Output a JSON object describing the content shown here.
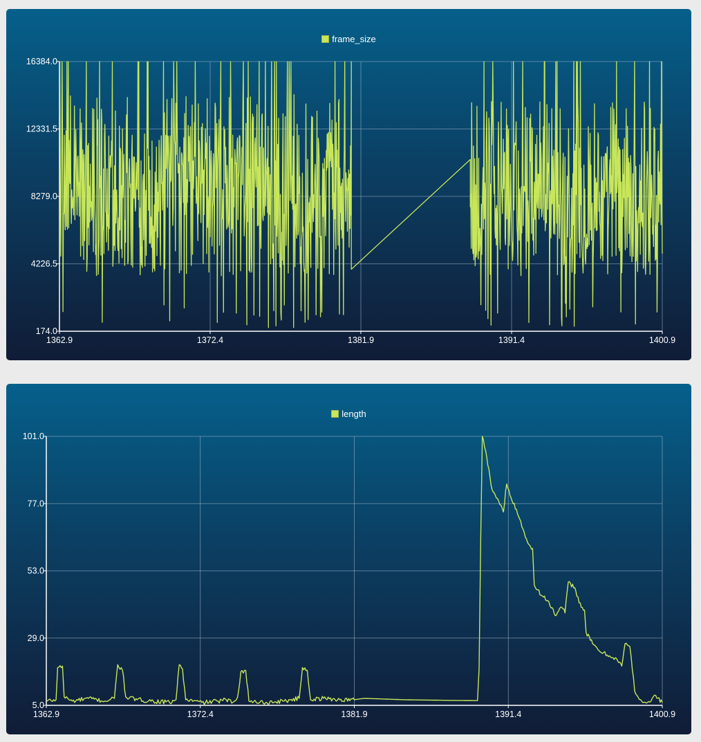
{
  "colors": {
    "series": "#c8e65a",
    "grid": "#9fb4c8",
    "axis": "#ffffff"
  },
  "chart_data": [
    {
      "type": "line",
      "title": "",
      "xlabel": "",
      "ylabel": "",
      "legend_position": "top-center",
      "grid": true,
      "xlim": [
        1362.9,
        1400.9
      ],
      "ylim": [
        174.0,
        16384.0
      ],
      "x_ticks": [
        "1362.9",
        "1372.4",
        "1381.9",
        "1391.4",
        "1400.9"
      ],
      "y_ticks": [
        "16384.0",
        "12331.5",
        "8279.0",
        "4226.5",
        "174.0"
      ],
      "series": [
        {
          "name": "frame_size",
          "noisy_segments": [
            {
              "x_start": 1362.9,
              "x_end": 1381.3,
              "typical_min": 3500,
              "typical_max": 12000,
              "peak": 16384,
              "floor": 300
            },
            {
              "x_start": 1388.8,
              "x_end": 1400.9,
              "typical_min": 3500,
              "typical_max": 11500,
              "peak": 16384,
              "floor": 400
            }
          ],
          "bridge": [
            [
              1381.3,
              3900
            ],
            [
              1388.8,
              10500
            ]
          ]
        }
      ]
    },
    {
      "type": "line",
      "title": "",
      "xlabel": "",
      "ylabel": "",
      "legend_position": "top-center",
      "grid": true,
      "xlim": [
        1362.9,
        1400.9
      ],
      "ylim": [
        5.0,
        101.0
      ],
      "x_ticks": [
        "1362.9",
        "1372.4",
        "1381.9",
        "1391.4",
        "1400.9"
      ],
      "y_ticks": [
        "101.0",
        "77.0",
        "53.0",
        "29.0",
        "5.0"
      ],
      "series": [
        {
          "name": "length",
          "points": [
            [
              1362.9,
              6.5
            ],
            [
              1363.5,
              7.0
            ],
            [
              1363.6,
              18.5
            ],
            [
              1363.9,
              19.0
            ],
            [
              1364.0,
              8.0
            ],
            [
              1364.5,
              6.5
            ],
            [
              1365.5,
              7.5
            ],
            [
              1366.5,
              6.5
            ],
            [
              1367.1,
              7.5
            ],
            [
              1367.3,
              19.5
            ],
            [
              1367.6,
              17.5
            ],
            [
              1367.8,
              8.0
            ],
            [
              1368.5,
              7.0
            ],
            [
              1369.5,
              6.5
            ],
            [
              1370.5,
              6.0
            ],
            [
              1370.9,
              7.0
            ],
            [
              1371.1,
              19.5
            ],
            [
              1371.3,
              18.0
            ],
            [
              1371.5,
              7.0
            ],
            [
              1372.5,
              6.0
            ],
            [
              1373.5,
              6.5
            ],
            [
              1374.0,
              7.0
            ],
            [
              1374.4,
              6.0
            ],
            [
              1374.7,
              8.0
            ],
            [
              1374.9,
              17.0
            ],
            [
              1375.2,
              17.5
            ],
            [
              1375.4,
              6.5
            ],
            [
              1376.5,
              6.0
            ],
            [
              1377.5,
              6.5
            ],
            [
              1378.5,
              7.5
            ],
            [
              1378.7,
              18.5
            ],
            [
              1379.0,
              17.5
            ],
            [
              1379.2,
              7.0
            ],
            [
              1380.0,
              7.5
            ],
            [
              1381.0,
              7.0
            ],
            [
              1381.9,
              7.0
            ],
            [
              1382.5,
              7.5
            ],
            [
              1385.0,
              7.0
            ],
            [
              1387.5,
              6.8
            ],
            [
              1389.5,
              6.7
            ],
            [
              1389.6,
              18.0
            ],
            [
              1389.7,
              65.0
            ],
            [
              1389.8,
              101.0
            ],
            [
              1390.0,
              96.0
            ],
            [
              1390.4,
              82.0
            ],
            [
              1390.8,
              78.0
            ],
            [
              1391.1,
              74.0
            ],
            [
              1391.3,
              84.0
            ],
            [
              1391.5,
              80.0
            ],
            [
              1391.9,
              75.0
            ],
            [
              1392.3,
              68.0
            ],
            [
              1392.6,
              63.0
            ],
            [
              1392.9,
              61.0
            ],
            [
              1393.0,
              48.0
            ],
            [
              1393.5,
              44.0
            ],
            [
              1393.9,
              42.0
            ],
            [
              1394.3,
              37.0
            ],
            [
              1394.7,
              40.0
            ],
            [
              1394.9,
              38.0
            ],
            [
              1395.1,
              49.0
            ],
            [
              1395.5,
              47.0
            ],
            [
              1395.9,
              40.0
            ],
            [
              1396.1,
              39.0
            ],
            [
              1396.2,
              31.0
            ],
            [
              1396.6,
              27.0
            ],
            [
              1397.0,
              24.5
            ],
            [
              1397.5,
              23.0
            ],
            [
              1398.0,
              22.0
            ],
            [
              1398.4,
              19.0
            ],
            [
              1398.6,
              27.0
            ],
            [
              1398.9,
              26.0
            ],
            [
              1399.2,
              10.0
            ],
            [
              1399.7,
              6.0
            ],
            [
              1400.2,
              6.5
            ],
            [
              1400.5,
              8.5
            ],
            [
              1400.9,
              6.0
            ]
          ]
        }
      ]
    }
  ]
}
